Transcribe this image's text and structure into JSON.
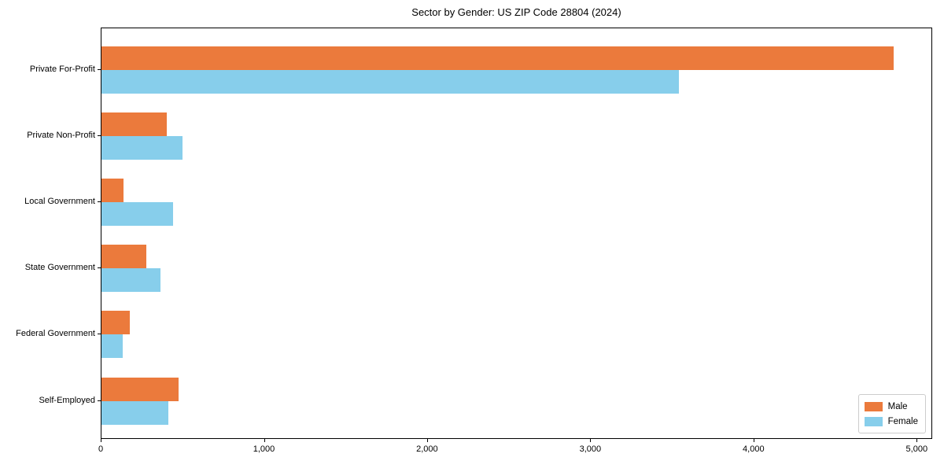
{
  "chart_data": {
    "type": "bar",
    "orientation": "horizontal",
    "title": "Sector by Gender: US ZIP Code 28804 (2024)",
    "categories": [
      "Private For-Profit",
      "Private Non-Profit",
      "Local Government",
      "State Government",
      "Federal Government",
      "Self-Employed"
    ],
    "series": [
      {
        "name": "Male",
        "color": "#EB7A3C",
        "values": [
          4855,
          400,
          135,
          275,
          175,
          470
        ]
      },
      {
        "name": "Female",
        "color": "#87CEEB",
        "values": [
          3540,
          495,
          440,
          360,
          130,
          410
        ]
      }
    ],
    "xlim": [
      0,
      5095
    ],
    "xticks": [
      {
        "value": 0,
        "label": "0"
      },
      {
        "value": 1000,
        "label": "1,000"
      },
      {
        "value": 2000,
        "label": "2,000"
      },
      {
        "value": 3000,
        "label": "3,000"
      },
      {
        "value": 4000,
        "label": "4,000"
      },
      {
        "value": 5000,
        "label": "5,000"
      }
    ],
    "ylabel": "",
    "xlabel": "",
    "grid": false,
    "legend": {
      "position": "lower right",
      "items": [
        "Male",
        "Female"
      ]
    },
    "background_color": "#ffffff",
    "spine_color": "#000000"
  }
}
